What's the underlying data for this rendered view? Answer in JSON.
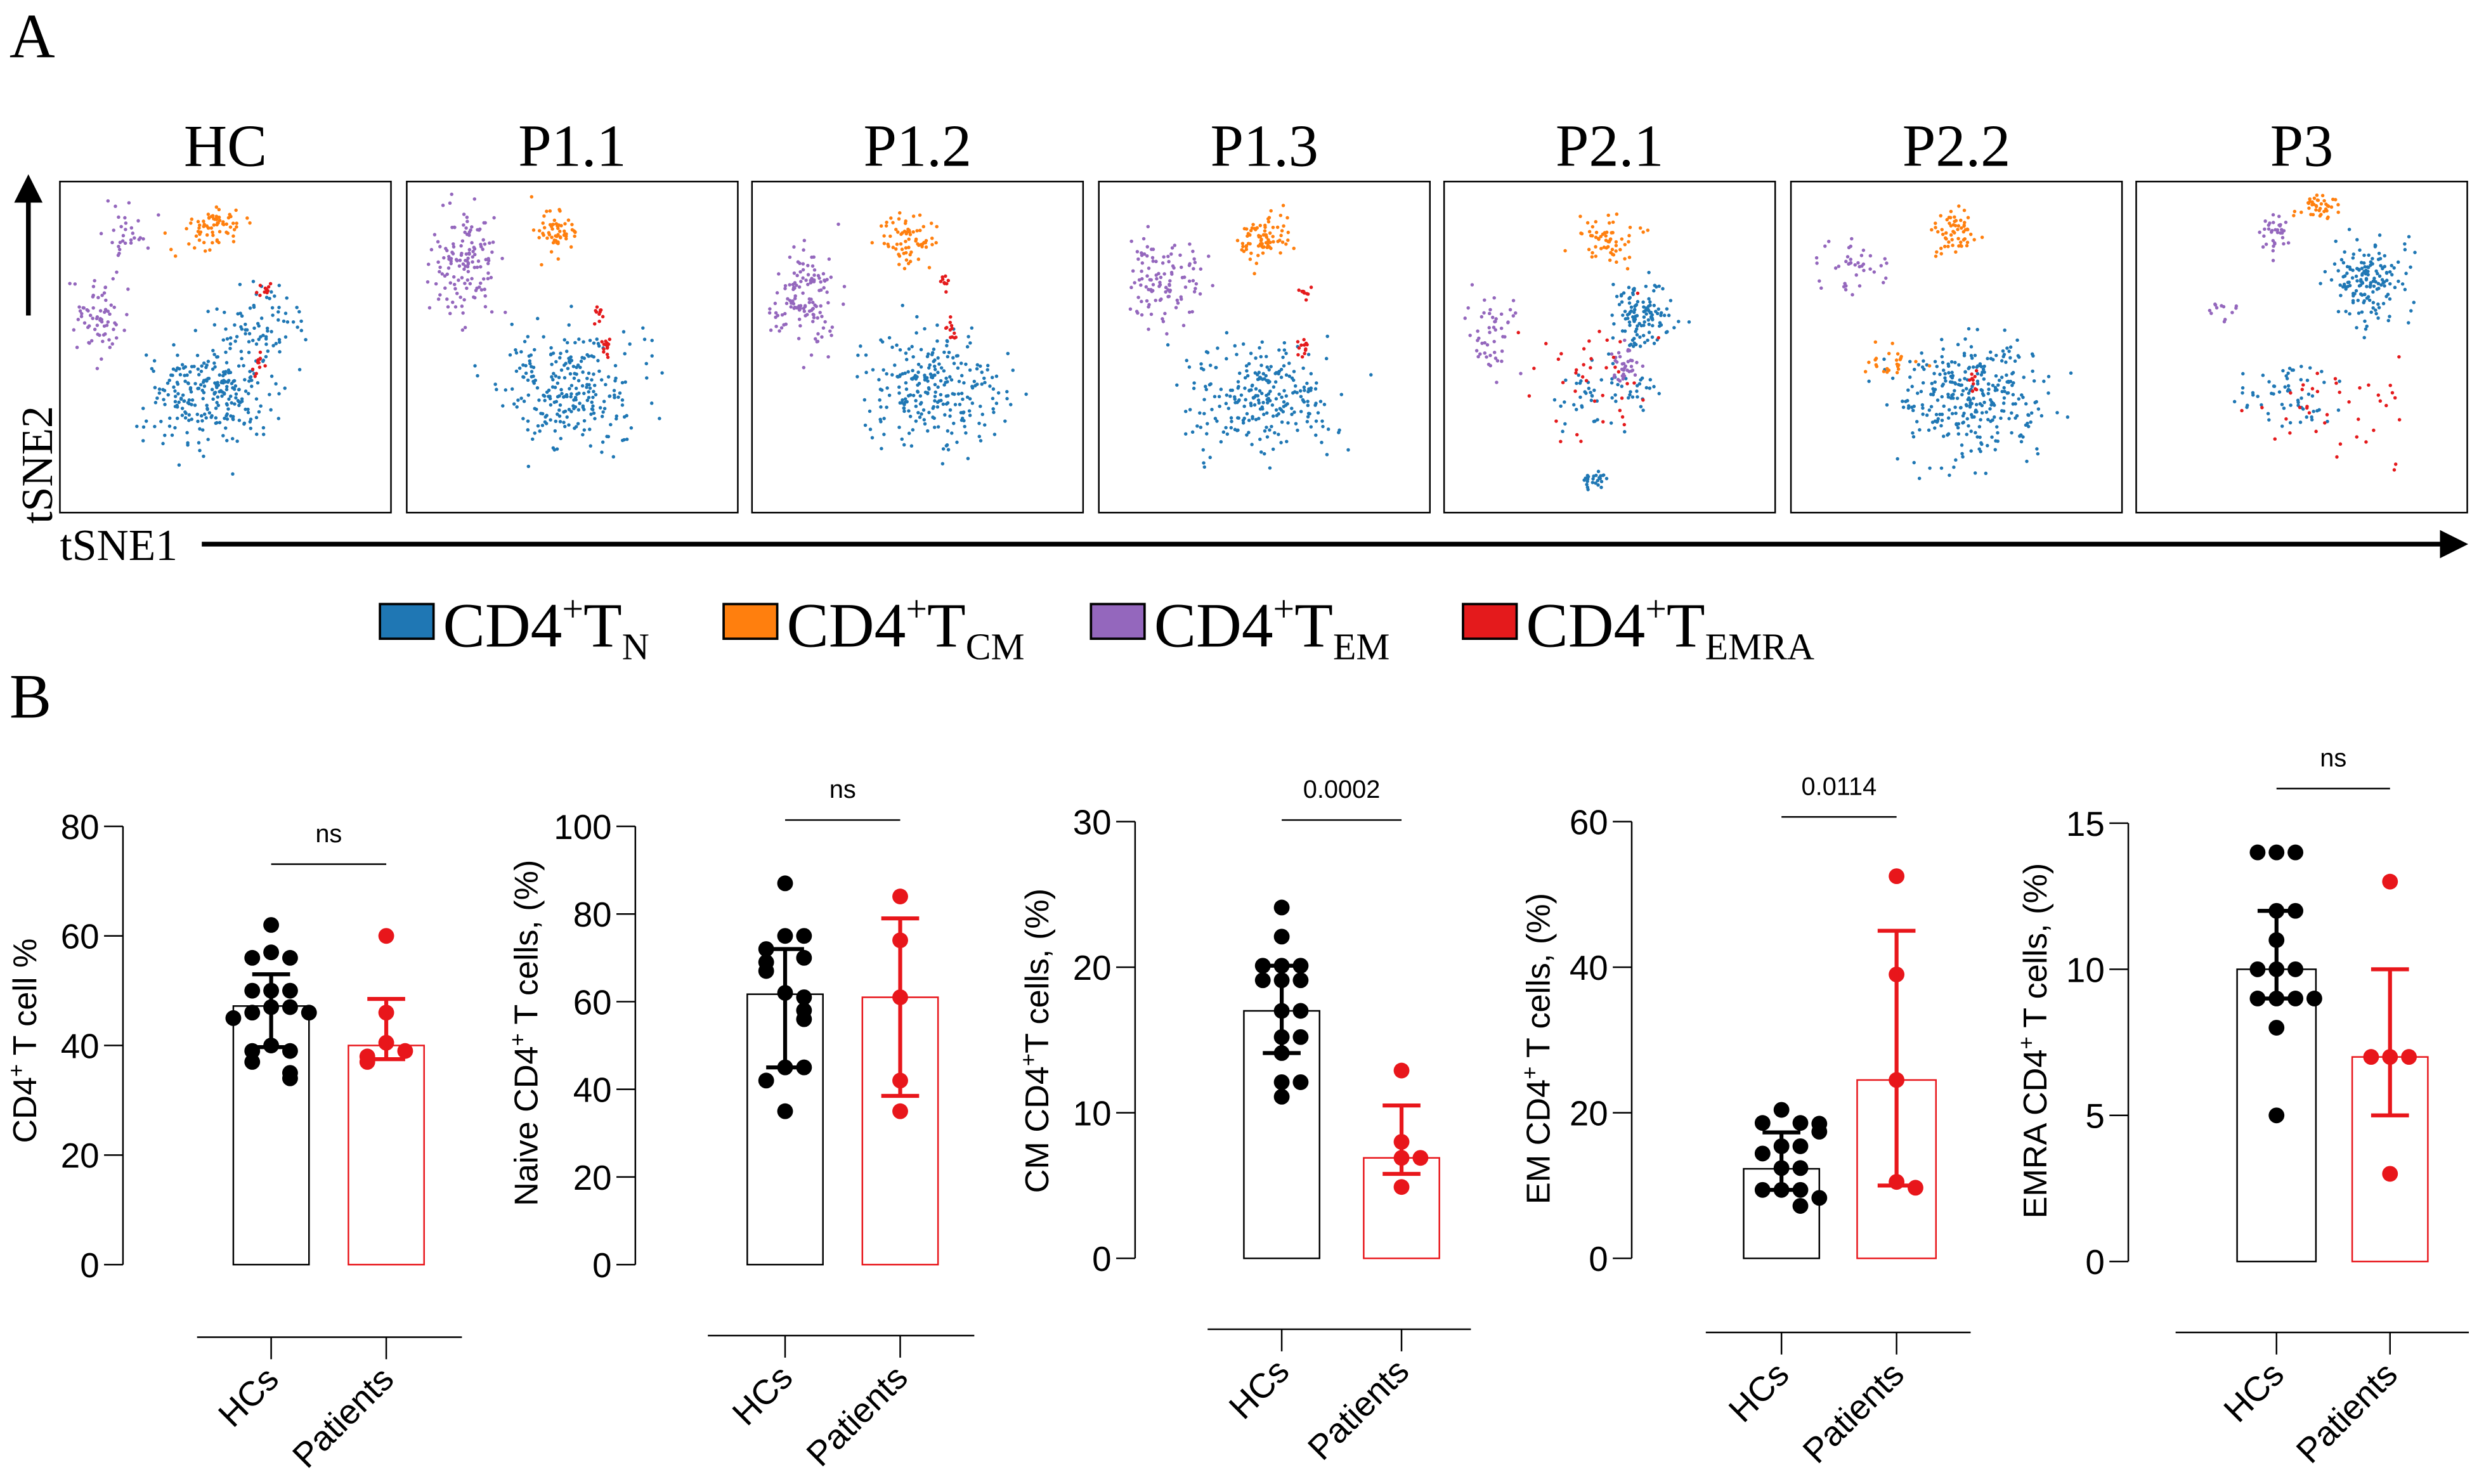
{
  "panel_labels": {
    "a": "A",
    "b": "B"
  },
  "tsne": {
    "samples": [
      "HC",
      "P1.1",
      "P1.2",
      "P1.3",
      "P2.1",
      "P2.2",
      "P3"
    ],
    "x_axis": "tSNE1",
    "y_axis": "tSNE2"
  },
  "legend": [
    {
      "base": "CD4",
      "sup": "+",
      "t": "T",
      "sub": "N",
      "color": "#1f77b4"
    },
    {
      "base": "CD4",
      "sup": "+",
      "t": "T",
      "sub": "CM",
      "color": "#ff7f0e"
    },
    {
      "base": "CD4",
      "sup": "+",
      "t": "T",
      "sub": "EM",
      "color": "#9467bd"
    },
    {
      "base": "CD4",
      "sup": "+",
      "t": "T",
      "sub": "EMRA",
      "color": "#e41a1c"
    }
  ],
  "chart_data": [
    {
      "type": "bar",
      "ylabel": {
        "pre": "CD4",
        "sup": "+",
        "post": " T cell %"
      },
      "ylim": [
        0,
        80
      ],
      "yticks": [
        "0",
        "20",
        "40",
        "60",
        "80"
      ],
      "categories": [
        "HCs",
        "Patients"
      ],
      "significance": "ns",
      "series": [
        {
          "name": "HCs",
          "color": "#000000",
          "mean": 47.2,
          "err": [
            39.7,
            53
          ],
          "points": [
            62,
            57,
            56,
            56,
            50,
            50,
            50,
            47,
            47,
            46,
            46,
            45,
            40,
            39,
            39,
            37,
            35,
            34
          ]
        },
        {
          "name": "Patients",
          "color": "#e8161b",
          "mean": 40,
          "err": [
            37.5,
            48.5
          ],
          "points": [
            60,
            46,
            40.5,
            39,
            38,
            37
          ]
        }
      ]
    },
    {
      "type": "bar",
      "ylabel": {
        "pre": "Naive CD4",
        "sup": "+",
        "post": " T cells, (%)"
      },
      "ylim": [
        0,
        100
      ],
      "yticks": [
        "0",
        "20",
        "40",
        "60",
        "80",
        "100"
      ],
      "categories": [
        "HCs",
        "Patients"
      ],
      "significance": "ns",
      "series": [
        {
          "name": "HCs",
          "color": "#000000",
          "mean": 61.7,
          "err": [
            45,
            72
          ],
          "points": [
            87,
            75,
            75,
            72,
            70,
            69,
            67,
            62,
            61,
            58,
            56,
            45,
            45,
            42,
            35
          ]
        },
        {
          "name": "Patients",
          "color": "#e8161b",
          "mean": 61,
          "err": [
            38.5,
            79
          ],
          "points": [
            84,
            74,
            61,
            42,
            35
          ]
        }
      ]
    },
    {
      "type": "bar",
      "ylabel": {
        "pre": "CM CD4",
        "sup": "+",
        "post": "T cells, (%)"
      },
      "ylim": [
        0,
        30
      ],
      "yticks": [
        "0",
        "10",
        "20",
        "30"
      ],
      "categories": [
        "HCs",
        "Patients"
      ],
      "significance": "0.0002",
      "series": [
        {
          "name": "HCs",
          "color": "#000000",
          "mean": 17,
          "err": [
            14.1,
            20.1
          ],
          "points": [
            24.1,
            22.1,
            20.1,
            20.1,
            20.1,
            19.1,
            19.1,
            19.1,
            17,
            17,
            15.2,
            15.2,
            14.1,
            12.1,
            12.1,
            11.1
          ]
        },
        {
          "name": "Patients",
          "color": "#e8161b",
          "mean": 6.9,
          "err": [
            5.8,
            10.5
          ],
          "points": [
            12.9,
            8,
            6.9,
            6.9,
            4.9
          ]
        }
      ]
    },
    {
      "type": "bar",
      "ylabel": {
        "pre": "EM CD4",
        "sup": "+",
        "post": " T cells, (%)"
      },
      "ylim": [
        0,
        60
      ],
      "yticks": [
        "0",
        "20",
        "40",
        "60"
      ],
      "categories": [
        "HCs",
        "Patients"
      ],
      "significance": "0.0114",
      "series": [
        {
          "name": "HCs",
          "color": "#000000",
          "mean": 12.3,
          "err": [
            9.4,
            17.3
          ],
          "points": [
            20.4,
            18.6,
            18.6,
            18.5,
            17.4,
            15.4,
            15.4,
            14.4,
            12.4,
            12.4,
            9.4,
            9.4,
            9.4,
            8.3,
            7.2
          ]
        },
        {
          "name": "Patients",
          "color": "#e8161b",
          "mean": 24.5,
          "err": [
            10,
            45
          ],
          "points": [
            52.5,
            39,
            24.5,
            10.5,
            9.7
          ]
        }
      ]
    },
    {
      "type": "bar",
      "ylabel": {
        "pre": "EMRA CD4",
        "sup": "+",
        "post": " T cells, (%)"
      },
      "ylim": [
        0,
        15
      ],
      "yticks": [
        "0",
        "5",
        "10",
        "15"
      ],
      "categories": [
        "HCs",
        "Patients"
      ],
      "significance": "ns",
      "series": [
        {
          "name": "HCs",
          "color": "#000000",
          "mean": 10,
          "err": [
            9,
            12
          ],
          "points": [
            14,
            14,
            14,
            12,
            12,
            11,
            10,
            10,
            10,
            9,
            9,
            9,
            9,
            8,
            5
          ]
        },
        {
          "name": "Patients",
          "color": "#e8161b",
          "mean": 7,
          "err": [
            5,
            10
          ],
          "points": [
            13,
            7,
            7,
            7,
            3
          ]
        }
      ]
    }
  ]
}
